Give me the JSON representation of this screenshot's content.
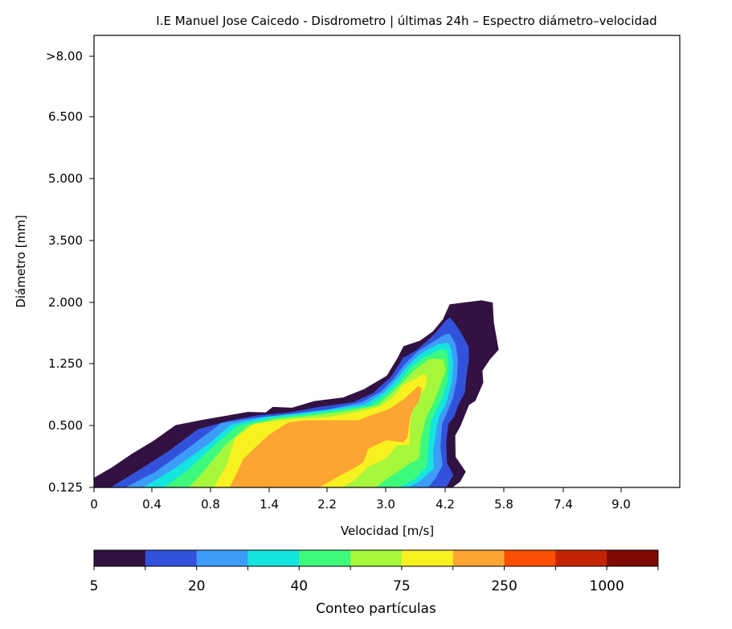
{
  "chart_data": {
    "type": "contour",
    "title": "I.E Manuel Jose Caicedo - Disdrometro | últimas 24h – Espectro diámetro–velocidad",
    "xlabel": "Velocidad [m/s]",
    "ylabel": "Diámetro [mm]",
    "x_ticks": [
      "0",
      "0.4",
      "0.8",
      "1.4",
      "2.2",
      "3.0",
      "4.2",
      "5.8",
      "7.4",
      "9.0"
    ],
    "y_ticks": [
      "0.125",
      "0.500",
      "1.250",
      "2.000",
      "3.500",
      "5.000",
      "6.500",
      ">8.00"
    ],
    "x_classes": [
      "0",
      "0.4",
      "0.8",
      "1.4",
      "2.2",
      "3.0",
      "4.2",
      "5.8",
      "7.4",
      "9.0"
    ],
    "y_classes": [
      "0.125",
      "0.500",
      "1.250",
      "2.000",
      "3.500",
      "5.000",
      "6.500",
      ">8.00"
    ],
    "colorbar": {
      "label": "Conteo partículas",
      "tick_labels": [
        "5",
        "20",
        "40",
        "75",
        "250",
        "1000"
      ],
      "colors": [
        "#321242",
        "#3352dc",
        "#3d9cf8",
        "#14e5de",
        "#3efa7c",
        "#a6f73c",
        "#f8f120",
        "#fca532",
        "#fb4f06",
        "#c42404",
        "#7f0a03"
      ],
      "extent": "min-max"
    },
    "contours": [
      {
        "level_index": 0,
        "color": "#321242",
        "points": [
          [
            0.0,
            0.125
          ],
          [
            0.0,
            0.182
          ],
          [
            0.122,
            0.244
          ],
          [
            0.26,
            0.326
          ],
          [
            0.412,
            0.406
          ],
          [
            0.563,
            0.502
          ],
          [
            0.737,
            0.562
          ],
          [
            1.183,
            0.662
          ],
          [
            1.367,
            0.656
          ],
          [
            1.45,
            0.722
          ],
          [
            1.714,
            0.712
          ],
          [
            2.027,
            0.793
          ],
          [
            2.421,
            0.837
          ],
          [
            2.707,
            0.938
          ],
          [
            3.028,
            1.102
          ],
          [
            3.244,
            1.317
          ],
          [
            3.361,
            1.46
          ],
          [
            3.693,
            1.527
          ],
          [
            3.952,
            1.64
          ],
          [
            4.157,
            1.788
          ],
          [
            4.328,
            1.973
          ],
          [
            4.818,
            2.004
          ],
          [
            5.191,
            2.044
          ],
          [
            5.491,
            1.996
          ],
          [
            5.523,
            1.75
          ],
          [
            5.654,
            1.422
          ],
          [
            5.409,
            1.298
          ],
          [
            5.211,
            1.164
          ],
          [
            5.234,
            1.02
          ],
          [
            5.019,
            0.8
          ],
          [
            4.847,
            0.75
          ],
          [
            4.618,
            0.5
          ],
          [
            4.47,
            0.44
          ],
          [
            4.478,
            0.31
          ],
          [
            4.754,
            0.22
          ],
          [
            4.603,
            0.16
          ],
          [
            4.389,
            0.125
          ]
        ]
      },
      {
        "level_index": 1,
        "color": "#3352dc",
        "points": [
          [
            0.116,
            0.125
          ],
          [
            0.281,
            0.212
          ],
          [
            0.509,
            0.34
          ],
          [
            0.715,
            0.476
          ],
          [
            0.981,
            0.552
          ],
          [
            1.275,
            0.62
          ],
          [
            1.671,
            0.655
          ],
          [
            2.078,
            0.72
          ],
          [
            2.56,
            0.781
          ],
          [
            2.829,
            0.89
          ],
          [
            3.125,
            1.098
          ],
          [
            3.359,
            1.32
          ],
          [
            3.606,
            1.404
          ],
          [
            3.831,
            1.52
          ],
          [
            4.018,
            1.63
          ],
          [
            4.215,
            1.775
          ],
          [
            4.328,
            1.81
          ],
          [
            4.461,
            1.74
          ],
          [
            4.624,
            1.63
          ],
          [
            4.832,
            1.46
          ],
          [
            4.847,
            1.305
          ],
          [
            4.768,
            1.077
          ],
          [
            4.735,
            0.9
          ],
          [
            4.556,
            0.75
          ],
          [
            4.439,
            0.61
          ],
          [
            4.283,
            0.52
          ],
          [
            4.222,
            0.4
          ],
          [
            4.239,
            0.274
          ],
          [
            4.417,
            0.2
          ],
          [
            4.217,
            0.125
          ]
        ]
      },
      {
        "level_index": 2,
        "color": "#3d9cf8",
        "points": [
          [
            0.222,
            0.125
          ],
          [
            0.428,
            0.22
          ],
          [
            0.668,
            0.375
          ],
          [
            0.91,
            0.526
          ],
          [
            1.233,
            0.587
          ],
          [
            1.653,
            0.632
          ],
          [
            2.222,
            0.692
          ],
          [
            2.675,
            0.78
          ],
          [
            2.94,
            0.91
          ],
          [
            3.168,
            1.064
          ],
          [
            3.372,
            1.232
          ],
          [
            3.654,
            1.398
          ],
          [
            4.01,
            1.535
          ],
          [
            4.182,
            1.6
          ],
          [
            4.323,
            1.612
          ],
          [
            4.475,
            1.495
          ],
          [
            4.541,
            1.3
          ],
          [
            4.518,
            1.08
          ],
          [
            4.412,
            0.84
          ],
          [
            4.237,
            0.65
          ],
          [
            4.133,
            0.52
          ],
          [
            4.1,
            0.369
          ],
          [
            4.144,
            0.26
          ],
          [
            3.995,
            0.179
          ],
          [
            3.848,
            0.125
          ]
        ]
      },
      {
        "level_index": 3,
        "color": "#14e5de",
        "points": [
          [
            0.345,
            0.125
          ],
          [
            0.546,
            0.234
          ],
          [
            0.792,
            0.39
          ],
          [
            1.009,
            0.509
          ],
          [
            1.362,
            0.602
          ],
          [
            1.855,
            0.648
          ],
          [
            2.313,
            0.702
          ],
          [
            2.715,
            0.751
          ],
          [
            2.981,
            0.901
          ],
          [
            3.228,
            1.06
          ],
          [
            3.417,
            1.203
          ],
          [
            3.711,
            1.37
          ],
          [
            4.041,
            1.48
          ],
          [
            4.279,
            1.502
          ],
          [
            4.361,
            1.42
          ],
          [
            4.418,
            1.23
          ],
          [
            4.374,
            1.02
          ],
          [
            4.22,
            0.76
          ],
          [
            4.089,
            0.63
          ],
          [
            4.026,
            0.5
          ],
          [
            3.953,
            0.34
          ],
          [
            3.967,
            0.24
          ],
          [
            3.683,
            0.163
          ],
          [
            3.449,
            0.125
          ]
        ]
      },
      {
        "level_index": 4,
        "color": "#3efa7c",
        "points": [
          [
            0.486,
            0.125
          ],
          [
            0.645,
            0.229
          ],
          [
            0.861,
            0.39
          ],
          [
            1.075,
            0.498
          ],
          [
            1.441,
            0.588
          ],
          [
            1.944,
            0.634
          ],
          [
            2.414,
            0.69
          ],
          [
            2.783,
            0.734
          ],
          [
            3.038,
            0.885
          ],
          [
            3.296,
            1.034
          ],
          [
            3.492,
            1.195
          ],
          [
            3.771,
            1.323
          ],
          [
            4.111,
            1.424
          ],
          [
            4.233,
            1.407
          ],
          [
            4.292,
            1.25
          ],
          [
            4.253,
            1.03
          ],
          [
            4.131,
            0.83
          ],
          [
            3.999,
            0.67
          ],
          [
            3.906,
            0.54
          ],
          [
            3.854,
            0.38
          ],
          [
            3.822,
            0.25
          ],
          [
            3.563,
            0.17
          ],
          [
            3.246,
            0.125
          ]
        ]
      },
      {
        "level_index": 5,
        "color": "#a6f73c",
        "points": [
          [
            0.652,
            0.125
          ],
          [
            0.729,
            0.195
          ],
          [
            0.954,
            0.38
          ],
          [
            1.193,
            0.5
          ],
          [
            1.495,
            0.575
          ],
          [
            2.031,
            0.62
          ],
          [
            2.518,
            0.678
          ],
          [
            2.898,
            0.744
          ],
          [
            3.086,
            0.87
          ],
          [
            3.326,
            1.01
          ],
          [
            3.59,
            1.172
          ],
          [
            3.891,
            1.305
          ],
          [
            4.165,
            1.3
          ],
          [
            4.21,
            1.17
          ],
          [
            4.069,
            0.94
          ],
          [
            3.932,
            0.74
          ],
          [
            3.81,
            0.6
          ],
          [
            3.706,
            0.42
          ],
          [
            3.666,
            0.3
          ],
          [
            3.476,
            0.27
          ],
          [
            3.235,
            0.22
          ],
          [
            3.014,
            0.177
          ],
          [
            2.864,
            0.125
          ]
        ]
      },
      {
        "level_index": 6,
        "color": "#f8f120",
        "points": [
          [
            0.838,
            0.125
          ],
          [
            0.976,
            0.27
          ],
          [
            1.049,
            0.42
          ],
          [
            1.25,
            0.52
          ],
          [
            1.665,
            0.57
          ],
          [
            2.21,
            0.598
          ],
          [
            2.638,
            0.664
          ],
          [
            2.919,
            0.727
          ],
          [
            3.149,
            0.836
          ],
          [
            3.375,
            1.0
          ],
          [
            3.62,
            1.067
          ],
          [
            3.752,
            1.124
          ],
          [
            3.826,
            1.092
          ],
          [
            3.807,
            0.98
          ],
          [
            3.652,
            0.83
          ],
          [
            3.53,
            0.67
          ],
          [
            3.487,
            0.51
          ],
          [
            3.476,
            0.386
          ],
          [
            3.227,
            0.381
          ],
          [
            3.009,
            0.303
          ],
          [
            2.754,
            0.249
          ],
          [
            2.567,
            0.169
          ],
          [
            2.387,
            0.125
          ]
        ]
      },
      {
        "level_index": 7,
        "color": "#fca532",
        "points": [
          [
            0.998,
            0.125
          ],
          [
            1.061,
            0.2
          ],
          [
            1.136,
            0.295
          ],
          [
            1.241,
            0.356
          ],
          [
            1.395,
            0.44
          ],
          [
            1.661,
            0.532
          ],
          [
            1.885,
            0.56
          ],
          [
            2.287,
            0.56
          ],
          [
            2.625,
            0.56
          ],
          [
            2.815,
            0.626
          ],
          [
            3.07,
            0.696
          ],
          [
            3.376,
            0.82
          ],
          [
            3.654,
            0.972
          ],
          [
            3.724,
            0.945
          ],
          [
            3.667,
            0.79
          ],
          [
            3.546,
            0.7
          ],
          [
            3.486,
            0.58
          ],
          [
            3.437,
            0.43
          ],
          [
            3.353,
            0.4
          ],
          [
            3.015,
            0.413
          ],
          [
            2.761,
            0.36
          ],
          [
            2.695,
            0.28
          ],
          [
            2.56,
            0.24
          ],
          [
            2.381,
            0.2
          ],
          [
            2.089,
            0.125
          ]
        ]
      }
    ]
  }
}
